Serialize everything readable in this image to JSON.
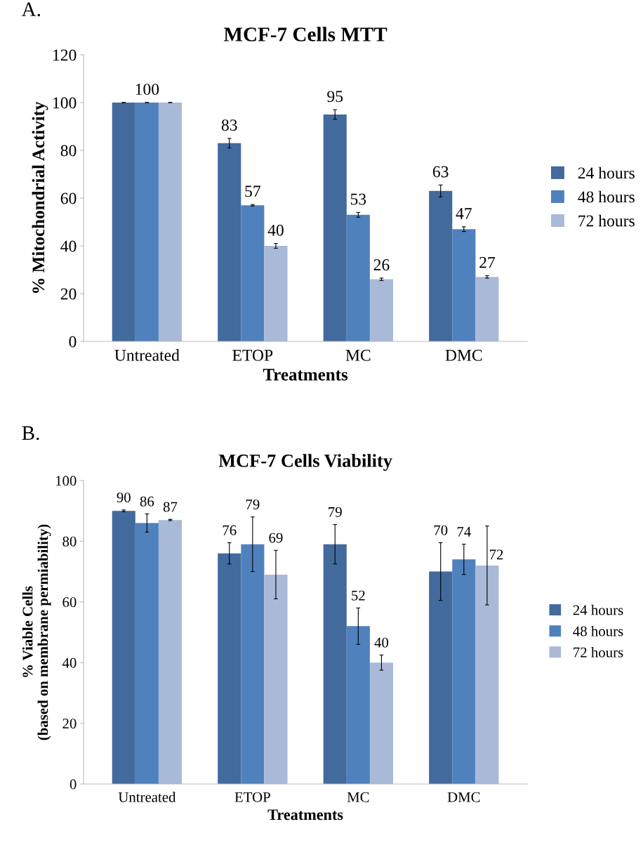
{
  "chart_data": [
    {
      "type": "bar",
      "title": "MCF-7 Cells MTT",
      "xlabel": "Treatments",
      "ylabel": "% Mitochondrial Activity",
      "annotations": [
        "A."
      ],
      "categories": [
        "Untreated",
        "ETOP",
        "MC",
        "DMC"
      ],
      "series": [
        {
          "name": "24 hours",
          "color": "#426a9c",
          "values": [
            100,
            83,
            95,
            63
          ],
          "errors": [
            0,
            2,
            2,
            2.5
          ],
          "value_labels": [
            null,
            "83",
            "95",
            "63"
          ]
        },
        {
          "name": "48 hours",
          "color": "#4f81bd",
          "values": [
            100,
            57,
            53,
            47
          ],
          "errors": [
            0,
            0.3,
            1,
            1
          ],
          "value_labels": [
            "100",
            "57",
            "53",
            "47"
          ]
        },
        {
          "name": "72 hours",
          "color": "#a9b9d8",
          "values": [
            100,
            40,
            26,
            27
          ],
          "errors": [
            0,
            1,
            0.5,
            0.5
          ],
          "value_labels": [
            null,
            "40",
            "26",
            "27"
          ]
        }
      ],
      "ylim": [
        0,
        120
      ],
      "yticks": [
        0,
        20,
        40,
        60,
        80,
        100,
        120
      ],
      "grid": false,
      "legend": "right"
    },
    {
      "type": "bar",
      "title": "MCF-7 Cells Viability",
      "xlabel": "Treatments",
      "ylabel": "% Viable Cells\n(based on membrane permiability)",
      "annotations": [
        "B."
      ],
      "categories": [
        "Untreated",
        "ETOP",
        "MC",
        "DMC"
      ],
      "series": [
        {
          "name": "24 hours",
          "color": "#426a9c",
          "values": [
            90,
            76,
            79,
            70
          ],
          "errors": [
            0.3,
            3.5,
            6.5,
            9.5
          ]
        },
        {
          "name": "48 hours",
          "color": "#4f81bd",
          "values": [
            86,
            79,
            52,
            74
          ],
          "errors": [
            3,
            9,
            6,
            5
          ]
        },
        {
          "name": "72 hours",
          "color": "#a9b9d8",
          "values": [
            87,
            69,
            40,
            72
          ],
          "errors": [
            0.2,
            8,
            2.5,
            13
          ]
        }
      ],
      "ylim": [
        0,
        100
      ],
      "yticks": [
        0,
        20,
        40,
        60,
        80,
        100
      ],
      "grid": false,
      "legend": "right",
      "data_labels": true
    }
  ]
}
